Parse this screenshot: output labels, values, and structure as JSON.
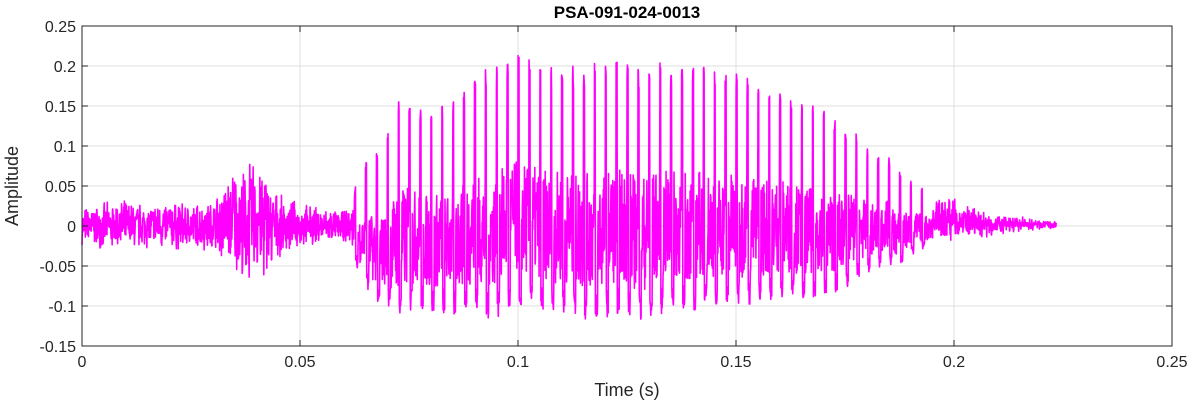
{
  "chart_data": {
    "type": "line",
    "title": "PSA-091-024-0013",
    "xlabel": "Time (s)",
    "ylabel": "Amplitude",
    "xlim": [
      0,
      0.25
    ],
    "ylim": [
      -0.15,
      0.25
    ],
    "xticks": [
      0,
      0.05,
      0.1,
      0.15,
      0.2,
      0.25
    ],
    "xtick_labels": [
      "0",
      "0.05",
      "0.1",
      "0.15",
      "0.2",
      "0.25"
    ],
    "yticks": [
      -0.15,
      -0.1,
      -0.05,
      0,
      0.05,
      0.1,
      0.15,
      0.2,
      0.25
    ],
    "ytick_labels": [
      "-0.15",
      "-0.1",
      "-0.05",
      "0",
      "0.05",
      "0.1",
      "0.15",
      "0.2",
      "0.25"
    ],
    "grid": true,
    "legend": "none",
    "line_color": "#ff00ff",
    "series": [
      {
        "x": [
          0,
          0.005,
          0.01,
          0.015,
          0.02,
          0.025,
          0.03,
          0.035,
          0.037,
          0.04,
          0.042,
          0.045,
          0.05,
          0.055,
          0.06,
          0.062,
          0.0635,
          0.0665,
          0.0695,
          0.072,
          0.0745,
          0.077,
          0.0795,
          0.082,
          0.0845,
          0.087,
          0.0895,
          0.092,
          0.0945,
          0.097,
          0.0995,
          0.102,
          0.1045,
          0.107,
          0.1095,
          0.112,
          0.1145,
          0.117,
          0.1195,
          0.122,
          0.1245,
          0.127,
          0.1295,
          0.132,
          0.1345,
          0.137,
          0.1395,
          0.142,
          0.1445,
          0.147,
          0.1495,
          0.152,
          0.1545,
          0.157,
          0.1595,
          0.162,
          0.1645,
          0.167,
          0.1695,
          0.172,
          0.1745,
          0.177,
          0.1795,
          0.182,
          0.1845,
          0.187,
          0.1895,
          0.192,
          0.195,
          0.2,
          0.203,
          0.207,
          0.21,
          0.215,
          0.22,
          0.2235
        ],
        "y_max": [
          0.025,
          0.03,
          0.035,
          0.03,
          0.035,
          0.03,
          0.035,
          0.08,
          0.075,
          0.1,
          0.08,
          0.04,
          0.03,
          0.025,
          0.02,
          0.03,
          0.07,
          0.09,
          0.1,
          0.16,
          0.17,
          0.15,
          0.15,
          0.155,
          0.15,
          0.17,
          0.19,
          0.195,
          0.2,
          0.21,
          0.215,
          0.21,
          0.2,
          0.2,
          0.2,
          0.2,
          0.2,
          0.205,
          0.205,
          0.205,
          0.21,
          0.2,
          0.2,
          0.205,
          0.2,
          0.195,
          0.2,
          0.2,
          0.195,
          0.19,
          0.19,
          0.19,
          0.18,
          0.175,
          0.17,
          0.165,
          0.155,
          0.15,
          0.15,
          0.135,
          0.13,
          0.12,
          0.1,
          0.085,
          0.09,
          0.07,
          0.06,
          0.05,
          0.04,
          0.04,
          0.025,
          0.02,
          0.015,
          0.012,
          0.008,
          0.005
        ],
        "y_min": [
          -0.025,
          -0.03,
          -0.035,
          -0.03,
          -0.035,
          -0.03,
          -0.035,
          -0.06,
          -0.085,
          -0.07,
          -0.08,
          -0.04,
          -0.03,
          -0.025,
          -0.02,
          -0.03,
          -0.06,
          -0.09,
          -0.1,
          -0.115,
          -0.115,
          -0.1,
          -0.11,
          -0.11,
          -0.11,
          -0.11,
          -0.11,
          -0.115,
          -0.115,
          -0.11,
          -0.1,
          -0.1,
          -0.1,
          -0.11,
          -0.11,
          -0.11,
          -0.12,
          -0.12,
          -0.12,
          -0.11,
          -0.11,
          -0.12,
          -0.12,
          -0.11,
          -0.11,
          -0.1,
          -0.11,
          -0.1,
          -0.1,
          -0.1,
          -0.1,
          -0.1,
          -0.1,
          -0.095,
          -0.09,
          -0.09,
          -0.09,
          -0.09,
          -0.085,
          -0.085,
          -0.08,
          -0.07,
          -0.06,
          -0.055,
          -0.045,
          -0.055,
          -0.04,
          -0.03,
          -0.025,
          -0.02,
          -0.02,
          -0.015,
          -0.012,
          -0.008,
          -0.005,
          -0.003
        ]
      }
    ]
  }
}
